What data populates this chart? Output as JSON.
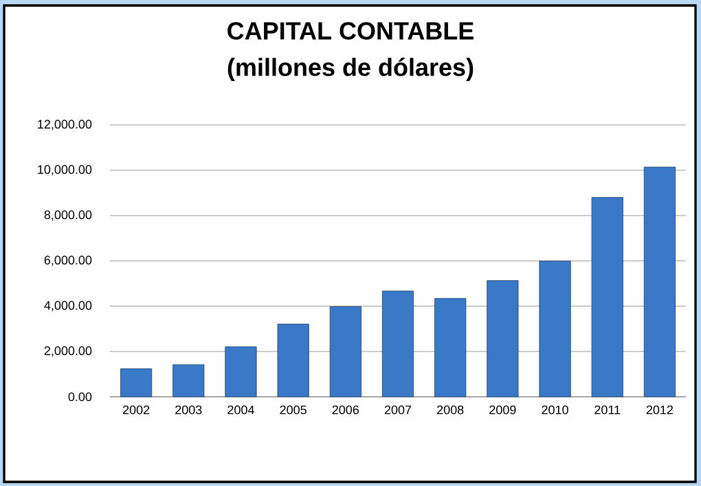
{
  "chart_data": {
    "type": "bar",
    "title": "CAPITAL CONTABLE",
    "subtitle": "(millones de dólares)",
    "categories": [
      "2002",
      "2003",
      "2004",
      "2005",
      "2006",
      "2007",
      "2008",
      "2009",
      "2010",
      "2011",
      "2012"
    ],
    "values": [
      1240,
      1420,
      2210,
      3210,
      3980,
      4670,
      4340,
      5130,
      5990,
      8800,
      10140
    ],
    "color": "#3a78c8",
    "ylim": [
      0,
      12000
    ],
    "yticks": [
      {
        "value": 0,
        "label": "0.00"
      },
      {
        "value": 2000,
        "label": "2,000.00"
      },
      {
        "value": 4000,
        "label": "4,000.00"
      },
      {
        "value": 6000,
        "label": "6,000.00"
      },
      {
        "value": 8000,
        "label": "8,000.00"
      },
      {
        "value": 10000,
        "label": "10,000.00"
      },
      {
        "value": 12000,
        "label": "12,000.00"
      }
    ],
    "grid": "y"
  }
}
